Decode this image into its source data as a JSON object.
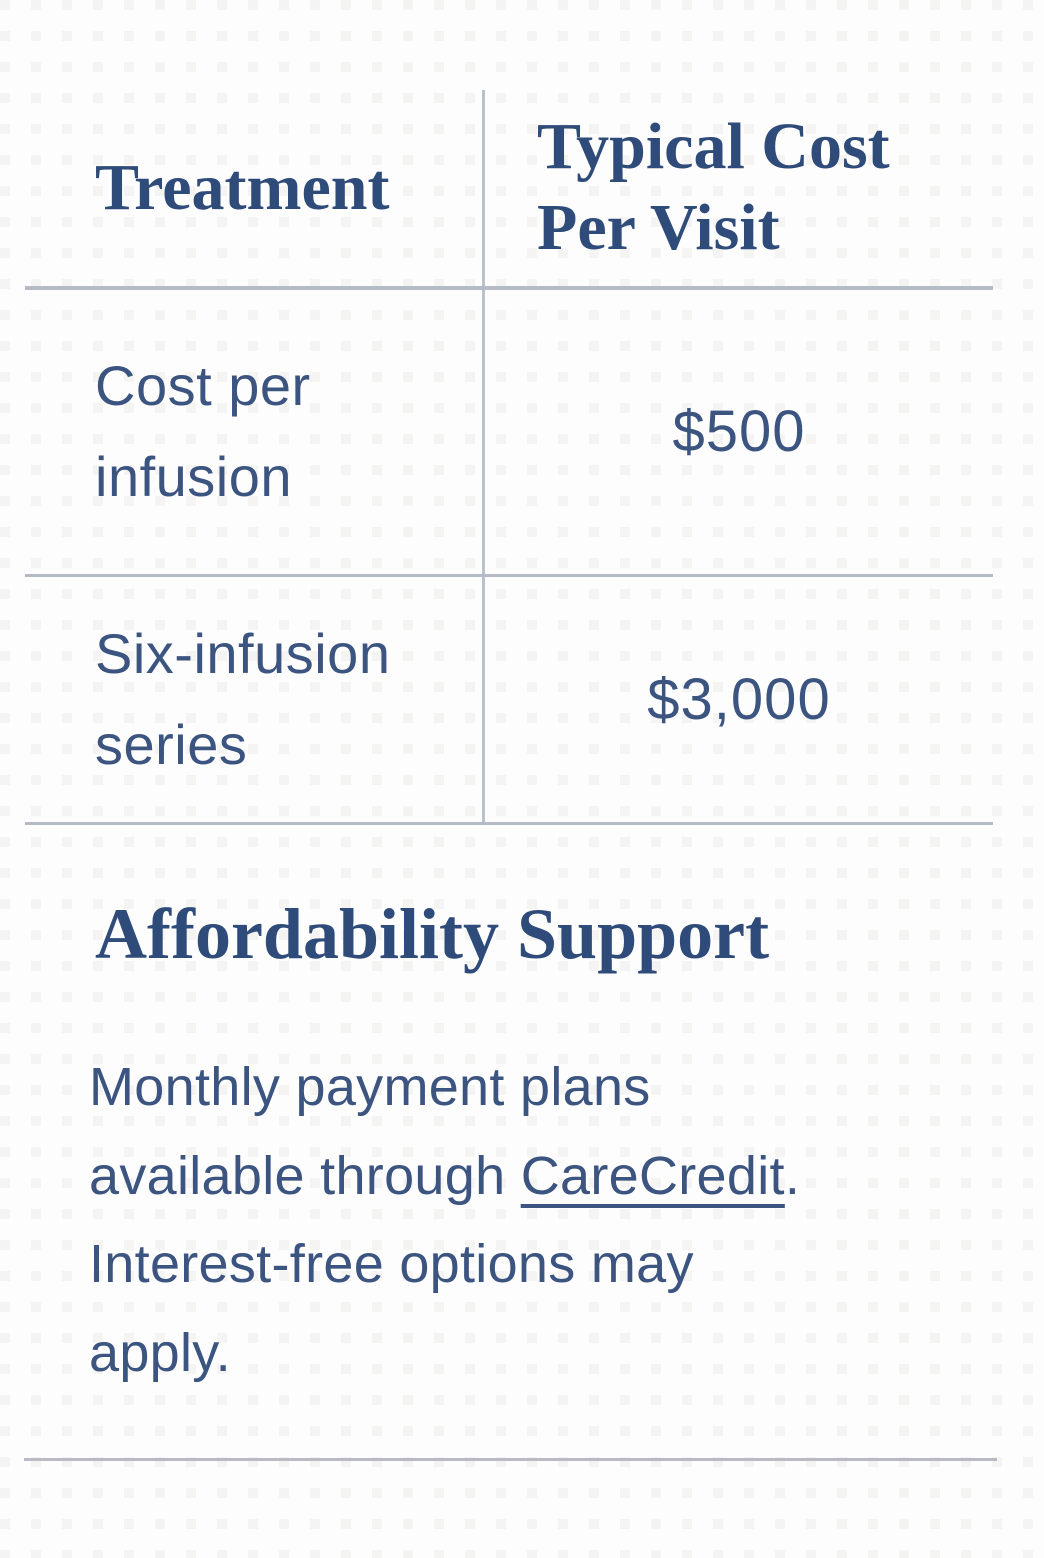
{
  "table": {
    "columns": [
      "Treatment",
      "Typical Cost Per Visit"
    ],
    "rows": [
      {
        "treatment": "Cost per infusion",
        "cost": "$500"
      },
      {
        "treatment": "Six-infusion series",
        "cost": "$3,000"
      }
    ]
  },
  "section": {
    "heading": "Affordability Support",
    "paragraph": {
      "line1": "Monthly payment plans",
      "line2_before": "available through ",
      "link": "CareCredit",
      "line2_after": ".",
      "line3": "Interest-free options may",
      "line4": "apply."
    }
  },
  "colors": {
    "heading_navy": "#2e4b7a",
    "body_navy": "#3c5480",
    "horizontal_rule": "#b4bbc7",
    "vertical_rule": "#b9c2cc",
    "background": "#fdfdfd"
  }
}
